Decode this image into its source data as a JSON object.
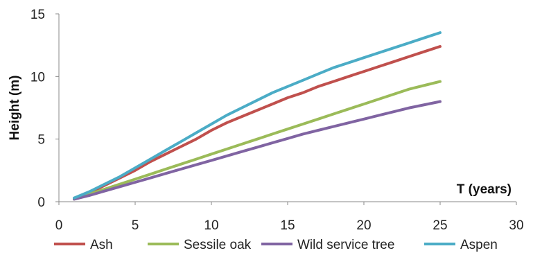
{
  "chart_data": {
    "type": "line",
    "title": "",
    "xlabel": "T (years)",
    "ylabel": "Height (m)",
    "xlim": [
      0,
      30
    ],
    "ylim": [
      0,
      15
    ],
    "xticks": [
      0,
      5,
      10,
      15,
      20,
      25,
      30
    ],
    "yticks": [
      0,
      5,
      10,
      15
    ],
    "grid": false,
    "legend": "bottom",
    "x": [
      1,
      2,
      3,
      4,
      5,
      6,
      7,
      8,
      9,
      10,
      11,
      12,
      13,
      14,
      15,
      16,
      17,
      18,
      19,
      20,
      21,
      22,
      23,
      24,
      25
    ],
    "series": [
      {
        "name": "Ash",
        "color": "#c0504d",
        "values": [
          0.25,
          0.7,
          1.3,
          1.9,
          2.5,
          3.2,
          3.8,
          4.4,
          5.0,
          5.7,
          6.3,
          6.8,
          7.3,
          7.8,
          8.3,
          8.7,
          9.2,
          9.6,
          10.0,
          10.4,
          10.8,
          11.2,
          11.6,
          12.0,
          12.4
        ]
      },
      {
        "name": "Sessile oak",
        "color": "#9bbb59",
        "values": [
          0.2,
          0.6,
          1.0,
          1.4,
          1.8,
          2.2,
          2.6,
          3.0,
          3.4,
          3.8,
          4.2,
          4.6,
          5.0,
          5.4,
          5.8,
          6.2,
          6.6,
          7.0,
          7.4,
          7.8,
          8.2,
          8.6,
          9.0,
          9.3,
          9.6
        ]
      },
      {
        "name": "Wild service tree",
        "color": "#8064a2",
        "values": [
          0.2,
          0.5,
          0.85,
          1.2,
          1.55,
          1.9,
          2.25,
          2.6,
          2.95,
          3.3,
          3.65,
          4.0,
          4.35,
          4.7,
          5.05,
          5.4,
          5.7,
          6.0,
          6.3,
          6.6,
          6.9,
          7.2,
          7.5,
          7.75,
          8.0
        ]
      },
      {
        "name": "Aspen",
        "color": "#4bacc6",
        "values": [
          0.3,
          0.8,
          1.4,
          2.0,
          2.7,
          3.4,
          4.1,
          4.8,
          5.5,
          6.2,
          6.9,
          7.5,
          8.1,
          8.7,
          9.2,
          9.7,
          10.2,
          10.7,
          11.1,
          11.5,
          11.9,
          12.3,
          12.7,
          13.1,
          13.5
        ]
      }
    ]
  }
}
